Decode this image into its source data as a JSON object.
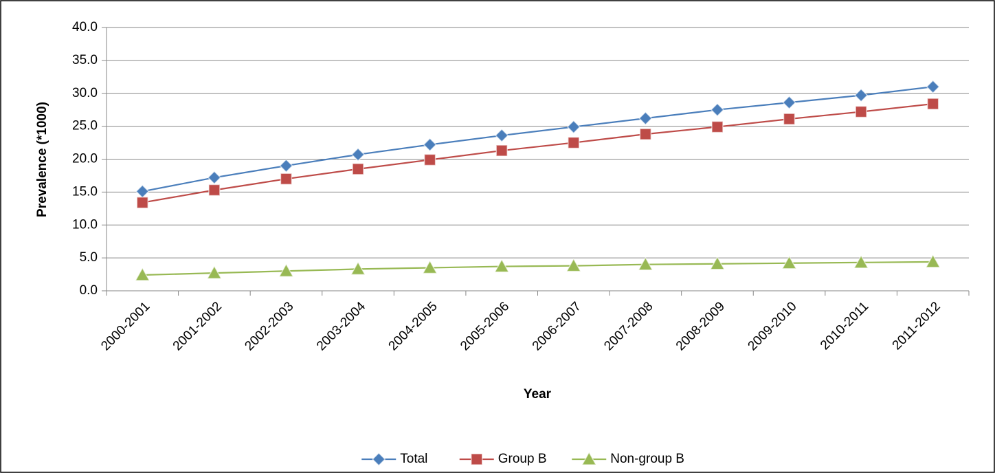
{
  "chart_data": {
    "type": "line",
    "y_label": "Prevalence (*1000)",
    "x_label": "Year",
    "categories": [
      "2000-2001",
      "2001-2002",
      "2002-2003",
      "2003-2004",
      "2004-2005",
      "2005-2006",
      "2006-2007",
      "2007-2008",
      "2008-2009",
      "2009-2010",
      "2010-2011",
      "2011-2012"
    ],
    "series": [
      {
        "name": "Total",
        "color": "#4a7ebb",
        "marker": "diamond",
        "values": [
          15.1,
          17.2,
          19.0,
          20.7,
          22.2,
          23.6,
          24.9,
          26.2,
          27.5,
          28.6,
          29.7,
          31.0
        ]
      },
      {
        "name": "Group B",
        "color": "#be4b48",
        "marker": "square",
        "values": [
          13.4,
          15.3,
          17.0,
          18.5,
          19.9,
          21.3,
          22.5,
          23.8,
          24.9,
          26.1,
          27.2,
          28.4
        ]
      },
      {
        "name": "Non-group B",
        "color": "#98b954",
        "marker": "triangle",
        "values": [
          2.4,
          2.7,
          3.0,
          3.3,
          3.5,
          3.7,
          3.8,
          4.0,
          4.1,
          4.2,
          4.3,
          4.4
        ]
      }
    ],
    "ylim": [
      0,
      40
    ],
    "yticks": [
      {
        "value": 0,
        "label": "0.0"
      },
      {
        "value": 5,
        "label": "5.0"
      },
      {
        "value": 10,
        "label": "10.0"
      },
      {
        "value": 15,
        "label": "15.0"
      },
      {
        "value": 20,
        "label": "20.0"
      },
      {
        "value": 25,
        "label": "25.0"
      },
      {
        "value": 30,
        "label": "30.0"
      },
      {
        "value": 35,
        "label": "35.0"
      },
      {
        "value": 40,
        "label": "40.0"
      }
    ],
    "grid": true,
    "legend": "bottom"
  }
}
